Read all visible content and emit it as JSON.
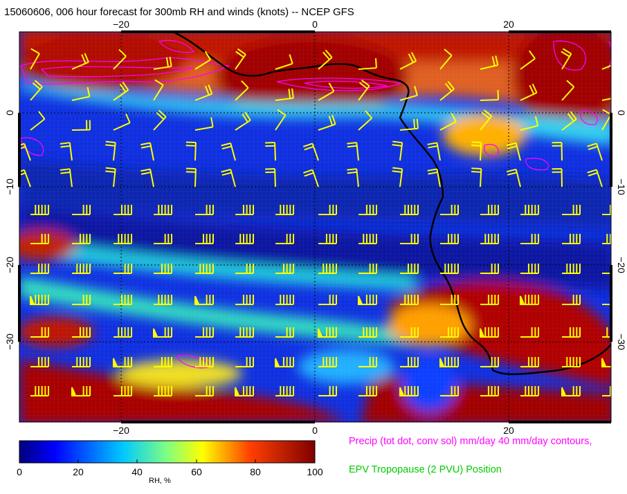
{
  "title": "15060606, 006 hour forecast for 300mb RH and winds (knots) -- NCEP GFS",
  "map": {
    "lon_ticks": [
      "−20",
      "0",
      "20"
    ],
    "lat_ticks": [
      "0",
      "−10",
      "−20",
      "−30"
    ],
    "background_palette": [
      "#00007f",
      "#0020ff",
      "#00c8ff",
      "#e0e020",
      "#ff2000",
      "#7f0000"
    ],
    "precip_contour_color": "#ff00ff",
    "wind_barb_color": "#ffff00",
    "coastline_color": "#000000"
  },
  "colorbar": {
    "title": "RH, %",
    "min": 0,
    "max": 100,
    "tick_labels": [
      "0",
      "20",
      "40",
      "60",
      "80",
      "100"
    ]
  },
  "legend": {
    "precip_text": "Precip (tot dot, conv sol) mm/day 40 mm/day contours,",
    "precip_color": "#ff00ff",
    "epv_text": "EPV Tropopause (2 PVU) Position",
    "epv_color": "#00cc00"
  }
}
